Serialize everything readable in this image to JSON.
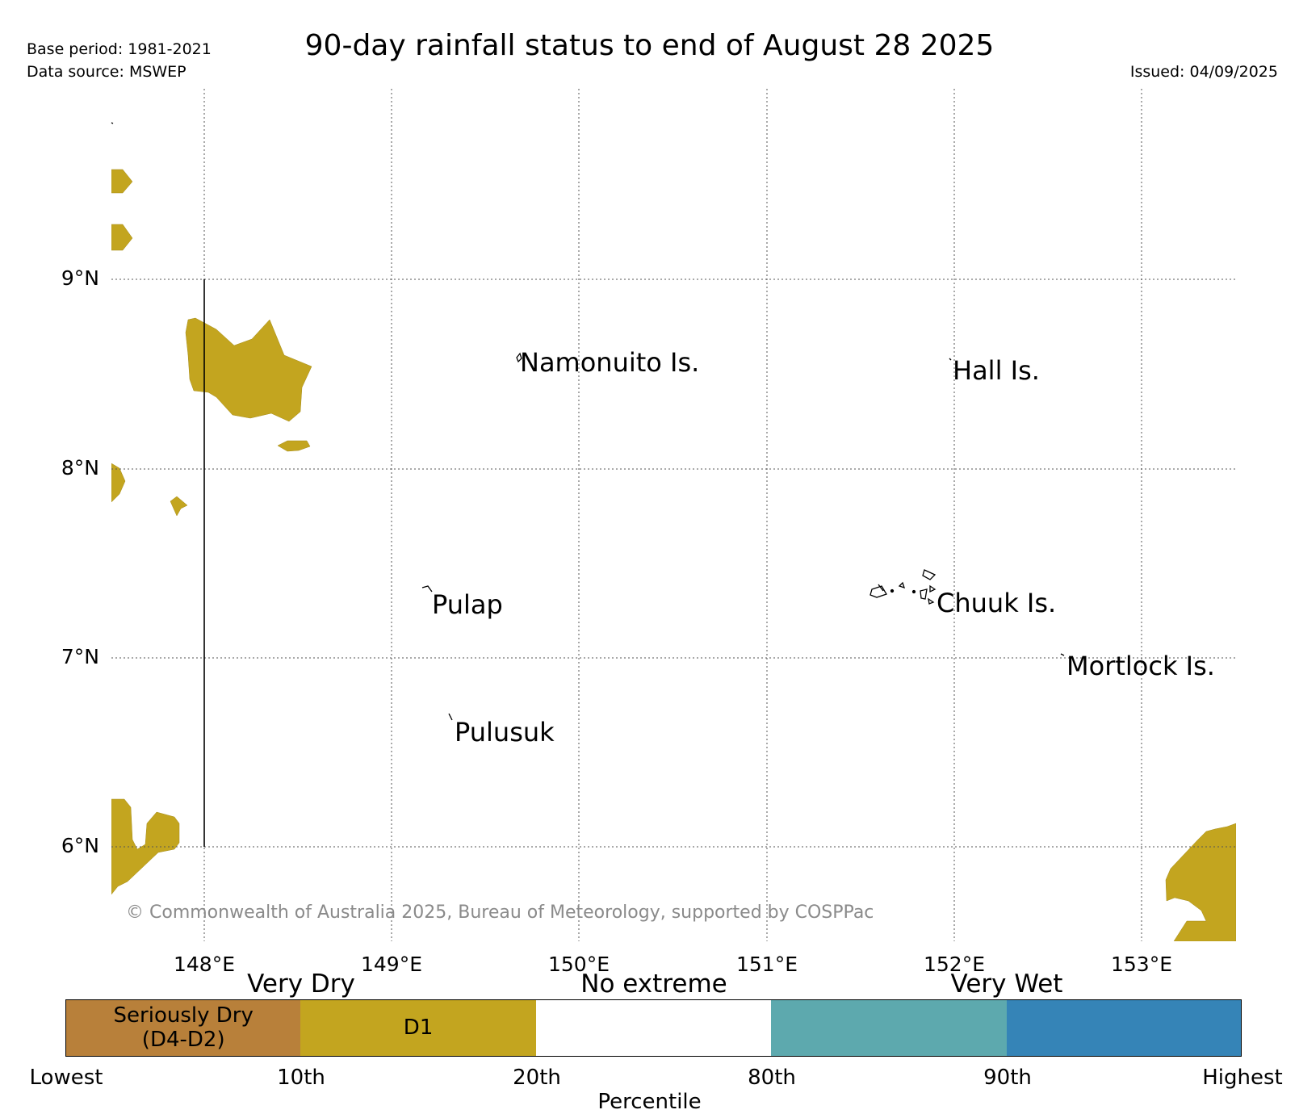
{
  "header": {
    "base_period": "Base period: 1981-2021",
    "data_source": "Data source: MSWEP",
    "title": "90-day rainfall status to end of August 28 2025",
    "issued": "Issued: 04/09/2025"
  },
  "map": {
    "lat_labels": [
      "9°N",
      "8°N",
      "7°N",
      "6°N"
    ],
    "lon_labels": [
      "148°E",
      "149°E",
      "150°E",
      "151°E",
      "152°E",
      "153°E"
    ],
    "places": {
      "namonuito": "Namonuito Is.",
      "hall": "Hall Is.",
      "pulap": "Pulap",
      "chuuk": "Chuuk Is.",
      "mortlock": "Mortlock Is.",
      "pulusuk": "Pulusuk"
    },
    "copyright": "© Commonwealth of Australia 2025, Bureau of Meteorology, supported by COSPPac",
    "colors": {
      "d1": "#c3a51f",
      "border": "#000000",
      "grid": "#555555"
    }
  },
  "legend": {
    "categories": [
      "Very Dry",
      "No extreme",
      "Very Wet"
    ],
    "segments": [
      {
        "label": "Seriously Dry\n(D4-D2)",
        "color": "#b8803a"
      },
      {
        "label": "D1",
        "color": "#c3a51f"
      },
      {
        "label": "",
        "color": "#ffffff"
      },
      {
        "label": "",
        "color": "#5da9ae"
      },
      {
        "label": "",
        "color": "#3584b7"
      }
    ],
    "ticks": [
      "Lowest",
      "10th",
      "20th",
      "80th",
      "90th",
      "Highest"
    ],
    "axis_label": "Percentile"
  }
}
